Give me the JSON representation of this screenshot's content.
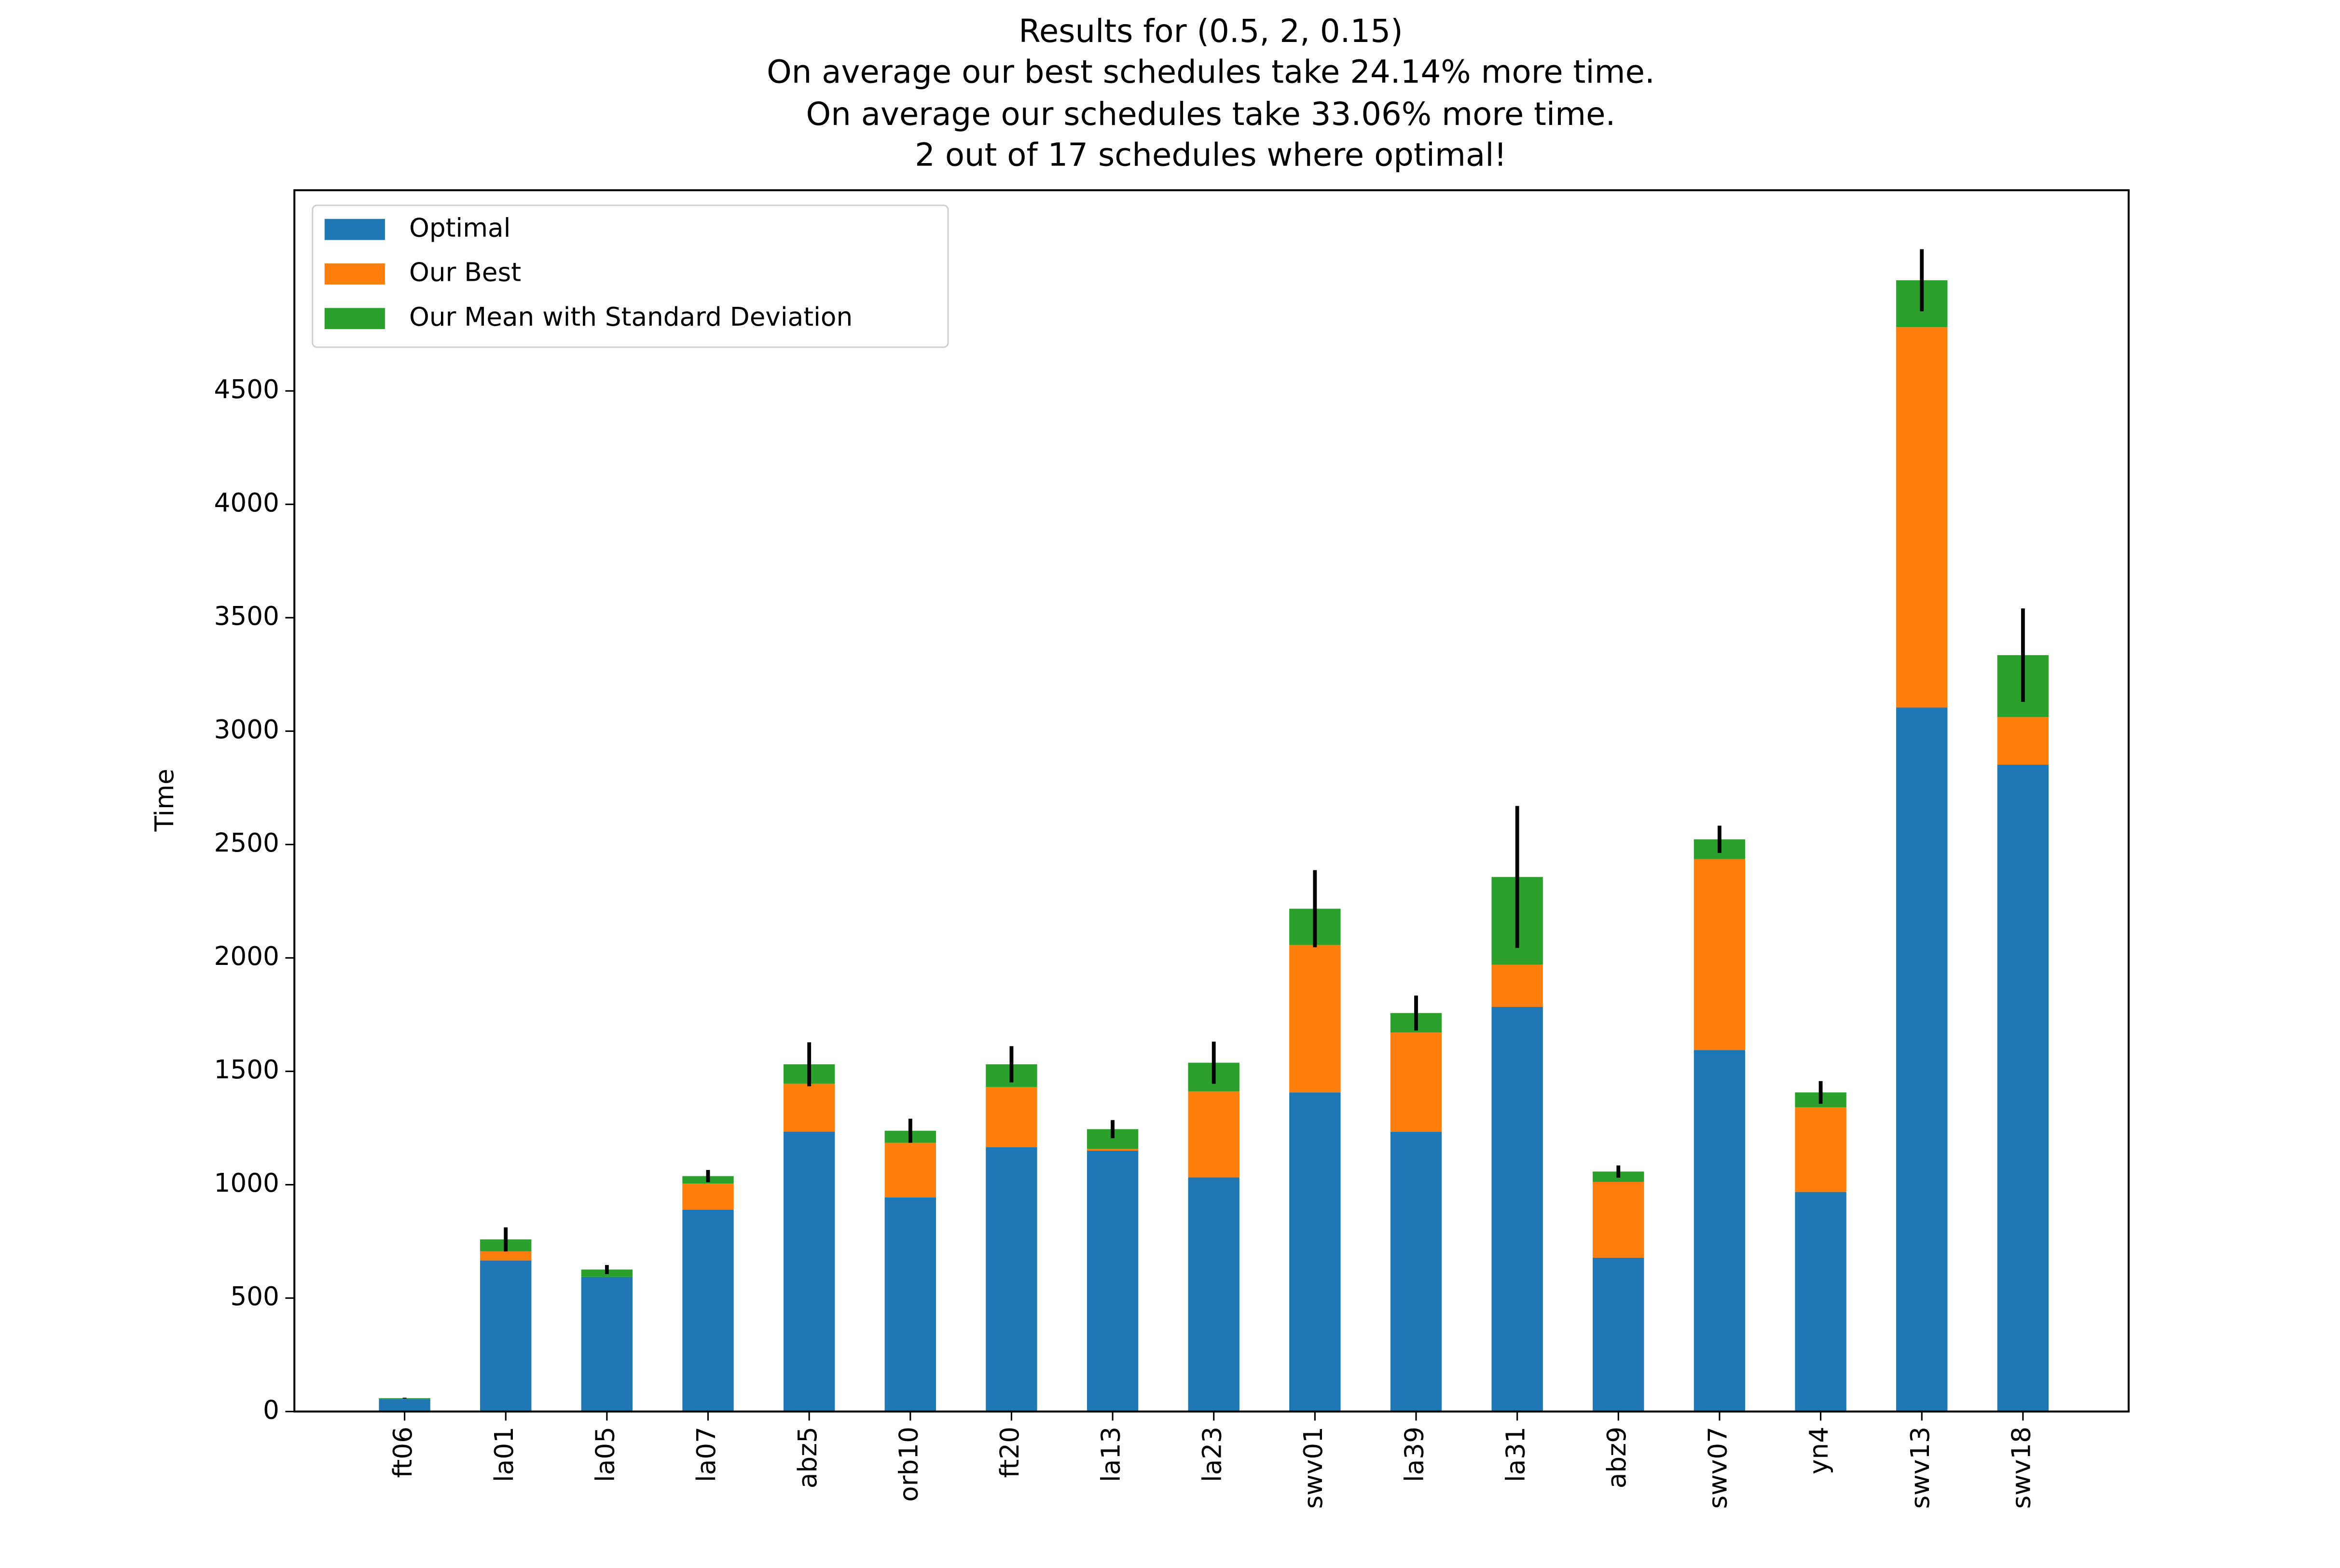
{
  "chart_data": {
    "type": "stacked-bar",
    "title": [
      "Results for (0.5, 2, 0.15)",
      "On average our best schedules take 24.14% more time.",
      "On average our schedules take 33.06% more time.",
      "2 out of 17 schedules where optimal!"
    ],
    "y_label": "Time",
    "categories": [
      "ft06",
      "la01",
      "la05",
      "la07",
      "abz5",
      "orb10",
      "ft20",
      "la13",
      "la23",
      "swv01",
      "la39",
      "la31",
      "abz9",
      "swv07",
      "yn4",
      "swv13",
      "swv18"
    ],
    "series": [
      {
        "name": "Optimal",
        "color": "#1f77b4",
        "values": [
          55,
          666,
          593,
          890,
          1234,
          944,
          1165,
          1150,
          1032,
          1407,
          1233,
          1784,
          678,
          1594,
          968,
          3104,
          2852
        ]
      },
      {
        "name": "Our Best",
        "color": "#ff7f0e",
        "values": [
          0,
          40,
          0,
          115,
          211,
          241,
          266,
          8,
          379,
          650,
          438,
          186,
          334,
          842,
          373,
          1677,
          210
        ]
      },
      {
        "name": "Our Mean with Standard Deviation",
        "color": "#2ca02c",
        "values": [
          4,
          53,
          33,
          33,
          86,
          53,
          100,
          87,
          127,
          160,
          86,
          387,
          46,
          87,
          66,
          207,
          273
        ],
        "errors": [
          2,
          53,
          20,
          27,
          97,
          53,
          80,
          40,
          93,
          170,
          77,
          313,
          27,
          60,
          50,
          137,
          206
        ]
      }
    ],
    "error_color": "#000000",
    "ylim": [
      0,
      5385
    ],
    "yticks": [
      0,
      500,
      1000,
      1500,
      2000,
      2500,
      3000,
      3500,
      4000,
      4500
    ],
    "legend": "upper left"
  }
}
